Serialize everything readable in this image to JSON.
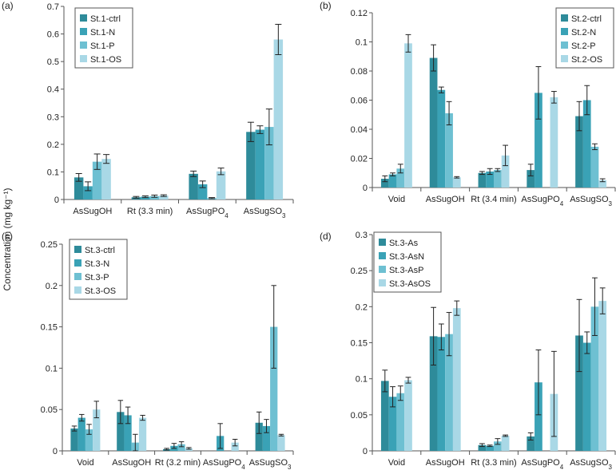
{
  "figure": {
    "ylabel": "Concentration (mg kg⁻¹)"
  },
  "colors": [
    "#2e8b9a",
    "#3aa2b6",
    "#6ec0d2",
    "#a9d8e6"
  ],
  "chart_data": [
    {
      "type": "bar",
      "panel_label": "(a)",
      "categories": [
        "AsSugOH",
        "Rt (3.3 min)",
        "AsSugPO4",
        "AsSugSO3"
      ],
      "ylim": [
        0,
        0.7
      ],
      "yticks": [
        0,
        0.1,
        0.2,
        0.3,
        0.4,
        0.5,
        0.6,
        0.7
      ],
      "grid": false,
      "legend_position": "top-left",
      "series": [
        {
          "name": "St.1-ctrl",
          "values": [
            0.08,
            0.008,
            0.093,
            0.245
          ],
          "errors": [
            0.014,
            0.003,
            0.01,
            0.035
          ]
        },
        {
          "name": "St.1-N",
          "values": [
            0.048,
            0.01,
            0.055,
            0.253
          ],
          "errors": [
            0.016,
            0.003,
            0.012,
            0.014
          ]
        },
        {
          "name": "St.1-P",
          "values": [
            0.137,
            0.012,
            0.005,
            0.263
          ],
          "errors": [
            0.028,
            0.004,
            0.002,
            0.065
          ]
        },
        {
          "name": "St.1-OS",
          "values": [
            0.147,
            0.014,
            0.102,
            0.58
          ],
          "errors": [
            0.016,
            0.003,
            0.012,
            0.055
          ]
        }
      ]
    },
    {
      "type": "bar",
      "panel_label": "(b)",
      "categories": [
        "Void",
        "AsSugOH",
        "Rt (3.4 min)",
        "AsSugPO4",
        "AsSugSO3"
      ],
      "ylim": [
        0,
        0.12
      ],
      "yticks": [
        0,
        0.02,
        0.04,
        0.06,
        0.08,
        0.1,
        0.12
      ],
      "grid": false,
      "legend_position": "top-right",
      "series": [
        {
          "name": "St.2-ctrl",
          "values": [
            0.006,
            0.089,
            0.01,
            0.012,
            0.049
          ],
          "errors": [
            0.002,
            0.009,
            0.001,
            0.004,
            0.01
          ]
        },
        {
          "name": "St.2-N",
          "values": [
            0.009,
            0.067,
            0.011,
            0.065,
            0.06
          ],
          "errors": [
            0.001,
            0.002,
            0.002,
            0.018,
            0.01
          ]
        },
        {
          "name": "St.2-P",
          "values": [
            0.013,
            0.051,
            0.012,
            0.0,
            0.028
          ],
          "errors": [
            0.003,
            0.008,
            0.001,
            0.0,
            0.002
          ]
        },
        {
          "name": "St.2-OS",
          "values": [
            0.099,
            0.007,
            0.022,
            0.062,
            0.005
          ],
          "errors": [
            0.006,
            0.0005,
            0.007,
            0.004,
            0.001
          ]
        }
      ]
    },
    {
      "type": "bar",
      "panel_label": "(c)",
      "categories": [
        "Void",
        "AsSugOH",
        "Rt (3.2 min)",
        "AsSugPO4",
        "AsSugSO3"
      ],
      "ylim": [
        0,
        0.25
      ],
      "yticks": [
        0,
        0.05,
        0.1,
        0.15,
        0.2,
        0.25
      ],
      "grid": false,
      "legend_position": "top-left",
      "series": [
        {
          "name": "St.3-ctrl",
          "values": [
            0.027,
            0.047,
            0.002,
            0.0,
            0.034
          ],
          "errors": [
            0.003,
            0.014,
            0.001,
            0.0,
            0.013
          ]
        },
        {
          "name": "St.3-N",
          "values": [
            0.04,
            0.043,
            0.006,
            0.018,
            0.03
          ],
          "errors": [
            0.004,
            0.01,
            0.003,
            0.015,
            0.008
          ]
        },
        {
          "name": "St.3-P",
          "values": [
            0.026,
            0.01,
            0.008,
            0.0,
            0.15
          ],
          "errors": [
            0.006,
            0.01,
            0.003,
            0.0,
            0.05
          ]
        },
        {
          "name": "St.3-OS",
          "values": [
            0.05,
            0.04,
            0.003,
            0.01,
            0.019
          ],
          "errors": [
            0.01,
            0.003,
            0.001,
            0.004,
            0.001
          ]
        }
      ]
    },
    {
      "type": "bar",
      "panel_label": "(d)",
      "categories": [
        "Void",
        "AsSugOH",
        "Rt (3.3 min)",
        "AsSugPO4",
        "AsSugSO3"
      ],
      "ylim": [
        0,
        0.3
      ],
      "yticks": [
        0,
        0.05,
        0.1,
        0.15,
        0.2,
        0.25,
        0.3
      ],
      "grid": false,
      "legend_position": "top-left",
      "series": [
        {
          "name": "St.3-As",
          "values": [
            0.097,
            0.159,
            0.008,
            0.02,
            0.16
          ],
          "errors": [
            0.015,
            0.04,
            0.002,
            0.005,
            0.05
          ]
        },
        {
          "name": "St.3-AsN",
          "values": [
            0.075,
            0.158,
            0.007,
            0.095,
            0.15
          ],
          "errors": [
            0.014,
            0.018,
            0.001,
            0.045,
            0.015
          ]
        },
        {
          "name": "St.3-AsP",
          "values": [
            0.08,
            0.162,
            0.013,
            0.0,
            0.2
          ],
          "errors": [
            0.01,
            0.03,
            0.004,
            0.0,
            0.04
          ]
        },
        {
          "name": "St.3-AsOS",
          "values": [
            0.098,
            0.198,
            0.021,
            0.079,
            0.208
          ],
          "errors": [
            0.004,
            0.01,
            0.001,
            0.059,
            0.018
          ]
        }
      ]
    }
  ]
}
